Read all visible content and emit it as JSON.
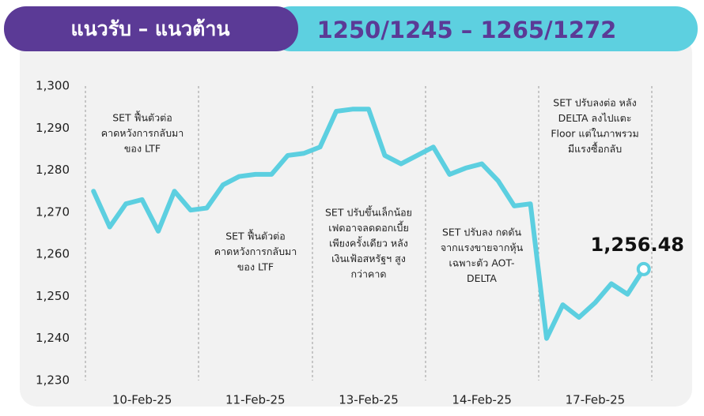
{
  "chart_data": {
    "type": "line",
    "title": "แนวรับ – แนวต้าน",
    "subtitle": "1250/1245 – 1265/1272",
    "categories": [
      null,
      null,
      null,
      "10-Feb-25",
      null,
      null,
      null,
      null,
      null,
      null,
      "11-Feb-25",
      null,
      null,
      null,
      null,
      null,
      null,
      "13-Feb-25",
      null,
      null,
      null,
      null,
      null,
      null,
      "14-Feb-25",
      null,
      null,
      null,
      null,
      null,
      null,
      "17-Feb-25",
      null,
      null,
      null
    ],
    "series": [
      {
        "color": "#5ccfe0",
        "values": [
          1275,
          1266.5,
          1272,
          1273,
          1265.5,
          1275,
          1270.5,
          1271,
          1276.5,
          1278.5,
          1279,
          1279,
          1283.5,
          1284,
          1285.5,
          1294,
          1294.5,
          1294.5,
          1283.5,
          1281.5,
          1283.5,
          1285.5,
          1279,
          1280.5,
          1281.5,
          1277.5,
          1271.5,
          1272,
          1240,
          1248,
          1245,
          1248.5,
          1253,
          1250.5,
          1256.48
        ],
        "value_labels": [
          null,
          null,
          null,
          null,
          null,
          null,
          null,
          null,
          null,
          null,
          null,
          null,
          null,
          null,
          null,
          null,
          null,
          null,
          null,
          null,
          null,
          null,
          null,
          null,
          null,
          null,
          null,
          null,
          null,
          null,
          null,
          null,
          null,
          null,
          "1,256.48"
        ]
      }
    ],
    "ylim": [
      1230,
      1300
    ],
    "yticks": [
      {
        "value": 1230,
        "label": "1,230"
      },
      {
        "value": 1240,
        "label": "1,240"
      },
      {
        "value": 1250,
        "label": "1,250"
      },
      {
        "value": 1260,
        "label": "1,260"
      },
      {
        "value": 1270,
        "label": "1,270"
      },
      {
        "value": 1280,
        "label": "1,280"
      },
      {
        "value": 1290,
        "label": "1,290"
      },
      {
        "value": 1300,
        "label": "1,300"
      }
    ],
    "annotations": [
      [
        "SET ฟื้นตัวต่อ",
        "คาดหวังการกลับมา",
        "ของ LTF"
      ],
      [
        "SET ฟื้นตัวต่อ",
        "คาดหวังการกลับมา",
        "ของ LTF"
      ],
      [
        "SET ปรับขึ้นเล็กน้อย",
        "เฟดอาจลดดอกเบี้ย",
        "เพียงครั้งเดียว หลัง",
        "เงินเฟ้อสหรัฐฯ สูง",
        "กว่าคาด"
      ],
      [
        "SET ปรับลง กดดัน",
        "จากแรงขายจากหุ้น",
        "เฉพาะตัว AOT-",
        "DELTA"
      ],
      [
        "SET ปรับลงต่อ หลัง",
        "DELTA ลงไปแตะ",
        "Floor แต่ในภาพรวม",
        "มีแรงซื้อกลับ"
      ]
    ]
  }
}
